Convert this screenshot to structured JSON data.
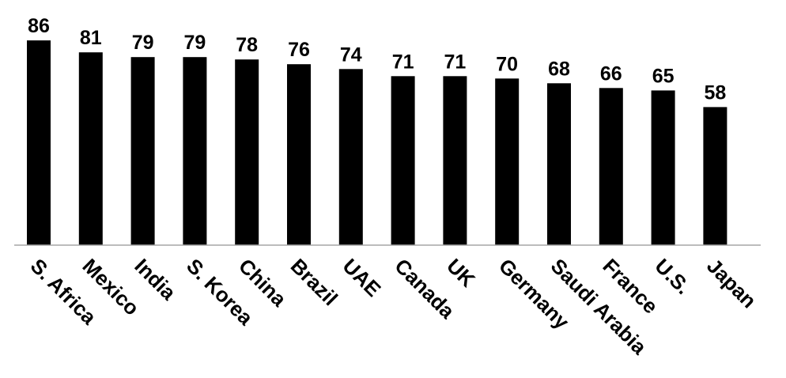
{
  "chart_data": {
    "type": "bar",
    "title": "",
    "xlabel": "",
    "ylabel": "",
    "categories": [
      "S. Africa",
      "Mexico",
      "India",
      "S. Korea",
      "China",
      "Brazil",
      "UAE",
      "Canada",
      "UK",
      "Germany",
      "Saudi Arabia",
      "France",
      "U.S.",
      "Japan"
    ],
    "values": [
      86,
      81,
      79,
      79,
      78,
      76,
      74,
      71,
      71,
      70,
      68,
      66,
      65,
      58
    ],
    "ylim": [
      0,
      100
    ],
    "grid": false,
    "legend": "none",
    "data_labels": true,
    "bar_color": "#000000",
    "axis_color": "#a6a6a6"
  }
}
